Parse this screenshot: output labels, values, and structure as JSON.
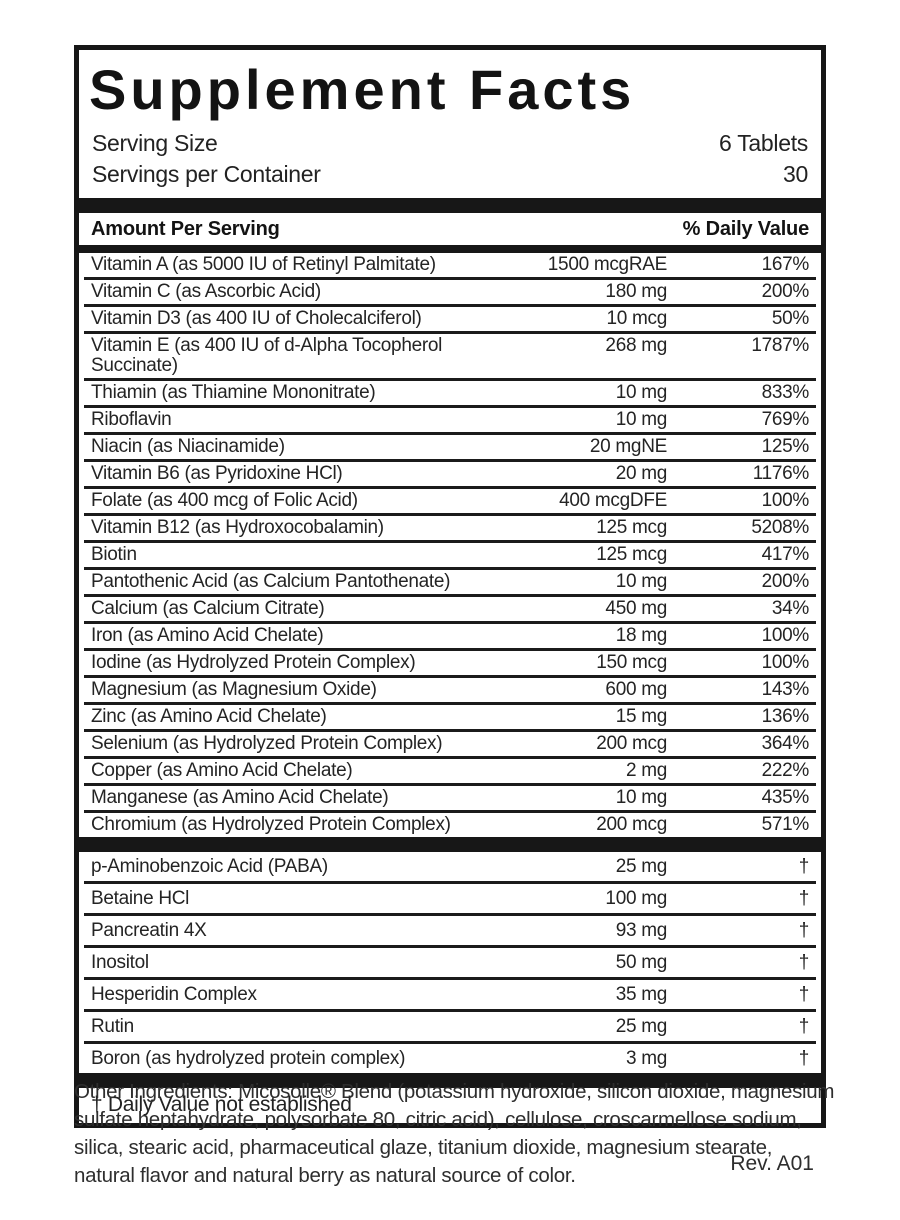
{
  "title": "Supplement Facts",
  "serving": {
    "size_label": "Serving Size",
    "size_value": "6 Tablets",
    "per_container_label": "Servings per Container",
    "per_container_value": "30"
  },
  "header": {
    "amount_label": "Amount Per Serving",
    "dv_label": "% Daily Value"
  },
  "main_rows": [
    {
      "name": "Vitamin A (as 5000 IU of Retinyl Palmitate)",
      "amount": "1500 mcgRAE",
      "dv": "167%"
    },
    {
      "name": "Vitamin C (as Ascorbic Acid)",
      "amount": "180 mg",
      "dv": "200%"
    },
    {
      "name": "Vitamin D3 (as 400 IU of Cholecalciferol)",
      "amount": "10 mcg",
      "dv": "50%"
    },
    {
      "name": "Vitamin E (as 400 IU of d-Alpha Tocopherol Succinate)",
      "amount": "268 mg",
      "dv": "1787%"
    },
    {
      "name": "Thiamin (as Thiamine Mononitrate)",
      "amount": "10 mg",
      "dv": "833%"
    },
    {
      "name": "Riboflavin",
      "amount": "10 mg",
      "dv": "769%"
    },
    {
      "name": "Niacin (as Niacinamide)",
      "amount": "20 mgNE",
      "dv": "125%"
    },
    {
      "name": "Vitamin B6 (as Pyridoxine HCl)",
      "amount": "20 mg",
      "dv": "1176%"
    },
    {
      "name": "Folate (as 400 mcg of Folic Acid)",
      "amount": "400 mcgDFE",
      "dv": "100%"
    },
    {
      "name": "Vitamin B12 (as Hydroxocobalamin)",
      "amount": "125 mcg",
      "dv": "5208%"
    },
    {
      "name": "Biotin",
      "amount": "125 mcg",
      "dv": "417%"
    },
    {
      "name": "Pantothenic Acid (as Calcium Pantothenate)",
      "amount": "10 mg",
      "dv": "200%"
    },
    {
      "name": "Calcium (as Calcium Citrate)",
      "amount": "450 mg",
      "dv": "34%"
    },
    {
      "name": "Iron (as Amino Acid Chelate)",
      "amount": "18 mg",
      "dv": "100%"
    },
    {
      "name": "Iodine (as Hydrolyzed Protein Complex)",
      "amount": "150 mcg",
      "dv": "100%"
    },
    {
      "name": "Magnesium (as Magnesium Oxide)",
      "amount": "600 mg",
      "dv": "143%"
    },
    {
      "name": "Zinc (as Amino Acid Chelate)",
      "amount": "15 mg",
      "dv": "136%"
    },
    {
      "name": "Selenium (as Hydrolyzed Protein Complex)",
      "amount": "200 mcg",
      "dv": "364%"
    },
    {
      "name": "Copper (as Amino Acid Chelate)",
      "amount": "2 mg",
      "dv": "222%"
    },
    {
      "name": "Manganese (as Amino Acid Chelate)",
      "amount": "10 mg",
      "dv": "435%"
    },
    {
      "name": "Chromium (as Hydrolyzed Protein Complex)",
      "amount": "200 mcg",
      "dv": "571%"
    }
  ],
  "secondary_rows": [
    {
      "name": "p-Aminobenzoic Acid (PABA)",
      "amount": "25 mg",
      "dv": "†"
    },
    {
      "name": "Betaine HCl",
      "amount": "100 mg",
      "dv": "†"
    },
    {
      "name": "Pancreatin 4X",
      "amount": "93 mg",
      "dv": "†"
    },
    {
      "name": "Inositol",
      "amount": "50 mg",
      "dv": "†"
    },
    {
      "name": "Hesperidin Complex",
      "amount": "35 mg",
      "dv": "†"
    },
    {
      "name": "Rutin",
      "amount": "25 mg",
      "dv": "†"
    },
    {
      "name": "Boron (as hydrolyzed protein complex)",
      "amount": "3 mg",
      "dv": "†"
    }
  ],
  "footnote": "† Daily Value not established",
  "other_ingredients": "Other Ingredients: Micosolle® Blend (potassium hydroxide, silicon dioxide, magnesium sulfate heptahydrate, polysorbate 80, citric acid), cellulose, croscarmellose sodium, silica, stearic acid, pharmaceutical glaze, titanium dioxide, magnesium stearate, natural flavor and natural berry as natural source of color.",
  "revision": "Rev. A01",
  "colors": {
    "ink": "#1f1f1f",
    "bar": "#171717",
    "background": "#ffffff"
  }
}
